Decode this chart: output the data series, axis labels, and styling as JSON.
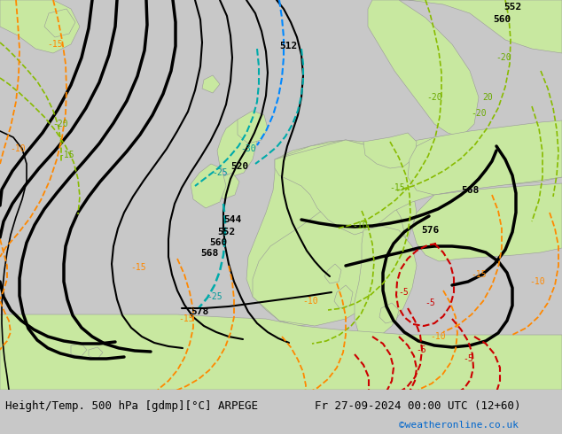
{
  "title_left": "Height/Temp. 500 hPa [gdmp][°C] ARPEGE",
  "title_right": "Fr 27-09-2024 00:00 UTC (12+60)",
  "credit": "©weatheronline.co.uk",
  "credit_color": "#0066cc",
  "bg_color": "#c8c8c8",
  "land_color": "#c8e8a0",
  "sea_color": "#d8d8d8",
  "coast_color": "#999999",
  "bottom_bar_color": "#e0e0e0",
  "title_fontsize": 9.0,
  "credit_fontsize": 8
}
